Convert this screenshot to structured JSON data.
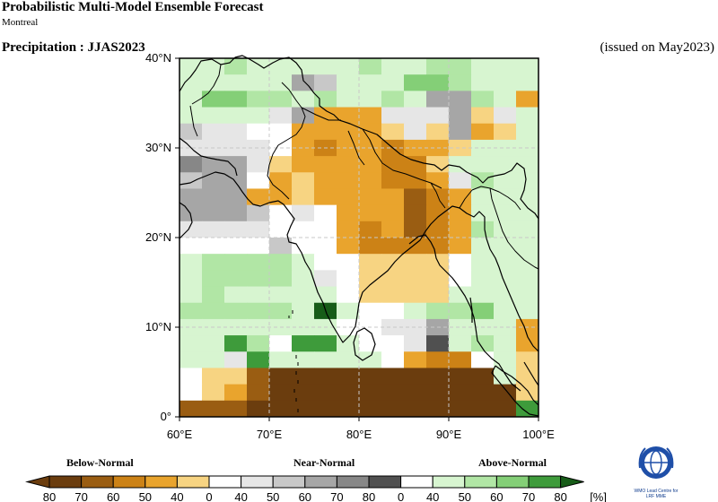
{
  "header": {
    "title": "Probabilistic Multi-Model Ensemble Forecast",
    "subtitle": "Montreal",
    "parameter": "Precipitation : JJAS2023",
    "issued": "(issued on May2023)"
  },
  "map": {
    "lon_range": [
      60,
      100
    ],
    "lat_range": [
      0,
      40
    ],
    "lon_ticks": [
      {
        "value": 60,
        "label": "60°E"
      },
      {
        "value": 70,
        "label": "70°E"
      },
      {
        "value": 80,
        "label": "80°E"
      },
      {
        "value": 90,
        "label": "90°E"
      },
      {
        "value": 100,
        "label": "100°E"
      }
    ],
    "lat_ticks": [
      {
        "value": 0,
        "label": "0°"
      },
      {
        "value": 10,
        "label": "10°N"
      },
      {
        "value": 20,
        "label": "20°N"
      },
      {
        "value": 30,
        "label": "30°N"
      },
      {
        "value": 40,
        "label": "40°N"
      }
    ],
    "grid_lines": true,
    "cell_size_deg": 2.5,
    "palette": {
      "B80": "#6b3d0e",
      "B70": "#9a5d12",
      "B60": "#cc8216",
      "B50": "#e9a42d",
      "B40": "#f7d482",
      "W": "#ffffff",
      "N40": "#e6e6e6",
      "N50": "#c8c8c8",
      "N60": "#a6a6a6",
      "N70": "#878787",
      "N80": "#505050",
      "A40": "#d7f5d0",
      "A50": "#b1e6a5",
      "A60": "#84cf77",
      "A70": "#3e9b3b",
      "A80": "#175c18"
    },
    "grid_rows_north_to_south": [
      "A40 A40 A50 A40 A40 A40 A40 A40 A50 A40 A40 A50 A50 A40 A40 A40",
      "A40 A40 A40 A40 A40 N60 N50 A40 A40 A40 A60 A60 A50 A40 A40 A40",
      "A40 A60 A60 A50 A50 A40 A50 A40 A40 A50 A40 N60 N60 A50 A40 B50",
      "A40 A40 A40 A40 N40 N60 B50 B50 B50 N40 N40 N40 N60 B40 N40 A40",
      "N50 N40 N40 W W B50 B50 B50 B50 B40 N40 B40 N60 B50 B40 A40",
      "N40 N40 N40 N40 W B50 B60 B50 B50 B60 B50 B50 B40 A40 A40 A40",
      "N70 N60 N60 N40 B40 B50 B50 B50 B50 B60 B60 B40 A40 A40 A40 A40",
      "N50 N60 N60 W B50 B40 B50 B50 B50 B60 B60 B50 N40 A50 A40 A40",
      "N60 N60 N60 B50 B50 B40 B50 B50 B50 B50 B70 B60 B50 A40 A40 A40",
      "N60 N60 N60 N50 W N40 W B50 B50 B50 B70 B60 B50 A40 A40 A40",
      "N40 N40 N40 N40 W W W B50 B60 B50 B70 B60 B50 A50 A40 A40",
      "W W W W N50 W W B50 B60 B60 B60 B60 B50 A40 A40 A40",
      "A40 A50 A50 A50 A50 A40 W W B40 B40 B40 B40 W A40 A40 A40",
      "A40 A50 A50 A50 A50 A40 N40 W B40 B40 B40 B40 W A40 A40 A40",
      "A40 A50 A40 A40 A40 A40 A40 W B40 B40 B40 B40 A40 A40 A40 A40",
      "A50 A50 A50 A50 A50 A40 A80 A40 W W A40 A50 A50 A60 A40 A40",
      "A40 A40 A40 A40 A40 A40 A40 W W N40 N40 N60 A40 A40 A40 B50",
      "A40 A40 A70 A50 W A70 A70 A40 W W N40 N80 A40 A50 A40 B50",
      "A40 A40 N40 A70 A40 A40 A40 A40 A40 W B50 B60 B60 W A40 B40",
      "W B40 B40 B70 B80 B80 B80 B80 B80 B80 B80 B80 B80 B80 A40 B40",
      "W B40 B50 B70 B80 B80 B80 B80 B80 B80 B80 B80 B80 B80 B80 B40",
      "B70 B70 B70 B80 B80 B80 B80 B80 B80 B80 B80 B80 B80 B80 B80 A70"
    ]
  },
  "legend": {
    "categories": [
      {
        "label": "Below-Normal"
      },
      {
        "label": "Near-Normal"
      },
      {
        "label": "Above-Normal"
      }
    ],
    "bins": [
      {
        "label": "80",
        "color": "#6b3d0e"
      },
      {
        "label": "70",
        "color": "#9a5d12"
      },
      {
        "label": "60",
        "color": "#cc8216"
      },
      {
        "label": "50",
        "color": "#e9a42d"
      },
      {
        "label": "40",
        "color": "#f7d482"
      },
      {
        "label": "0",
        "color": "#ffffff"
      },
      {
        "label": "40",
        "color": "#e6e6e6"
      },
      {
        "label": "50",
        "color": "#c8c8c8"
      },
      {
        "label": "60",
        "color": "#a6a6a6"
      },
      {
        "label": "70",
        "color": "#878787"
      },
      {
        "label": "80",
        "color": "#505050"
      },
      {
        "label": "0",
        "color": "#ffffff"
      },
      {
        "label": "40",
        "color": "#d7f5d0"
      },
      {
        "label": "50",
        "color": "#b1e6a5"
      },
      {
        "label": "60",
        "color": "#84cf77"
      },
      {
        "label": "70",
        "color": "#3e9b3b"
      }
    ],
    "end_label": "80",
    "unit": "[%]",
    "left_arrow_color": "#6b3d0e",
    "right_arrow_color": "#175c18"
  },
  "logo": {
    "icon": "wmo-globe-icon",
    "line1": "WMO Lead Centre for",
    "line2": "LRF MME"
  }
}
